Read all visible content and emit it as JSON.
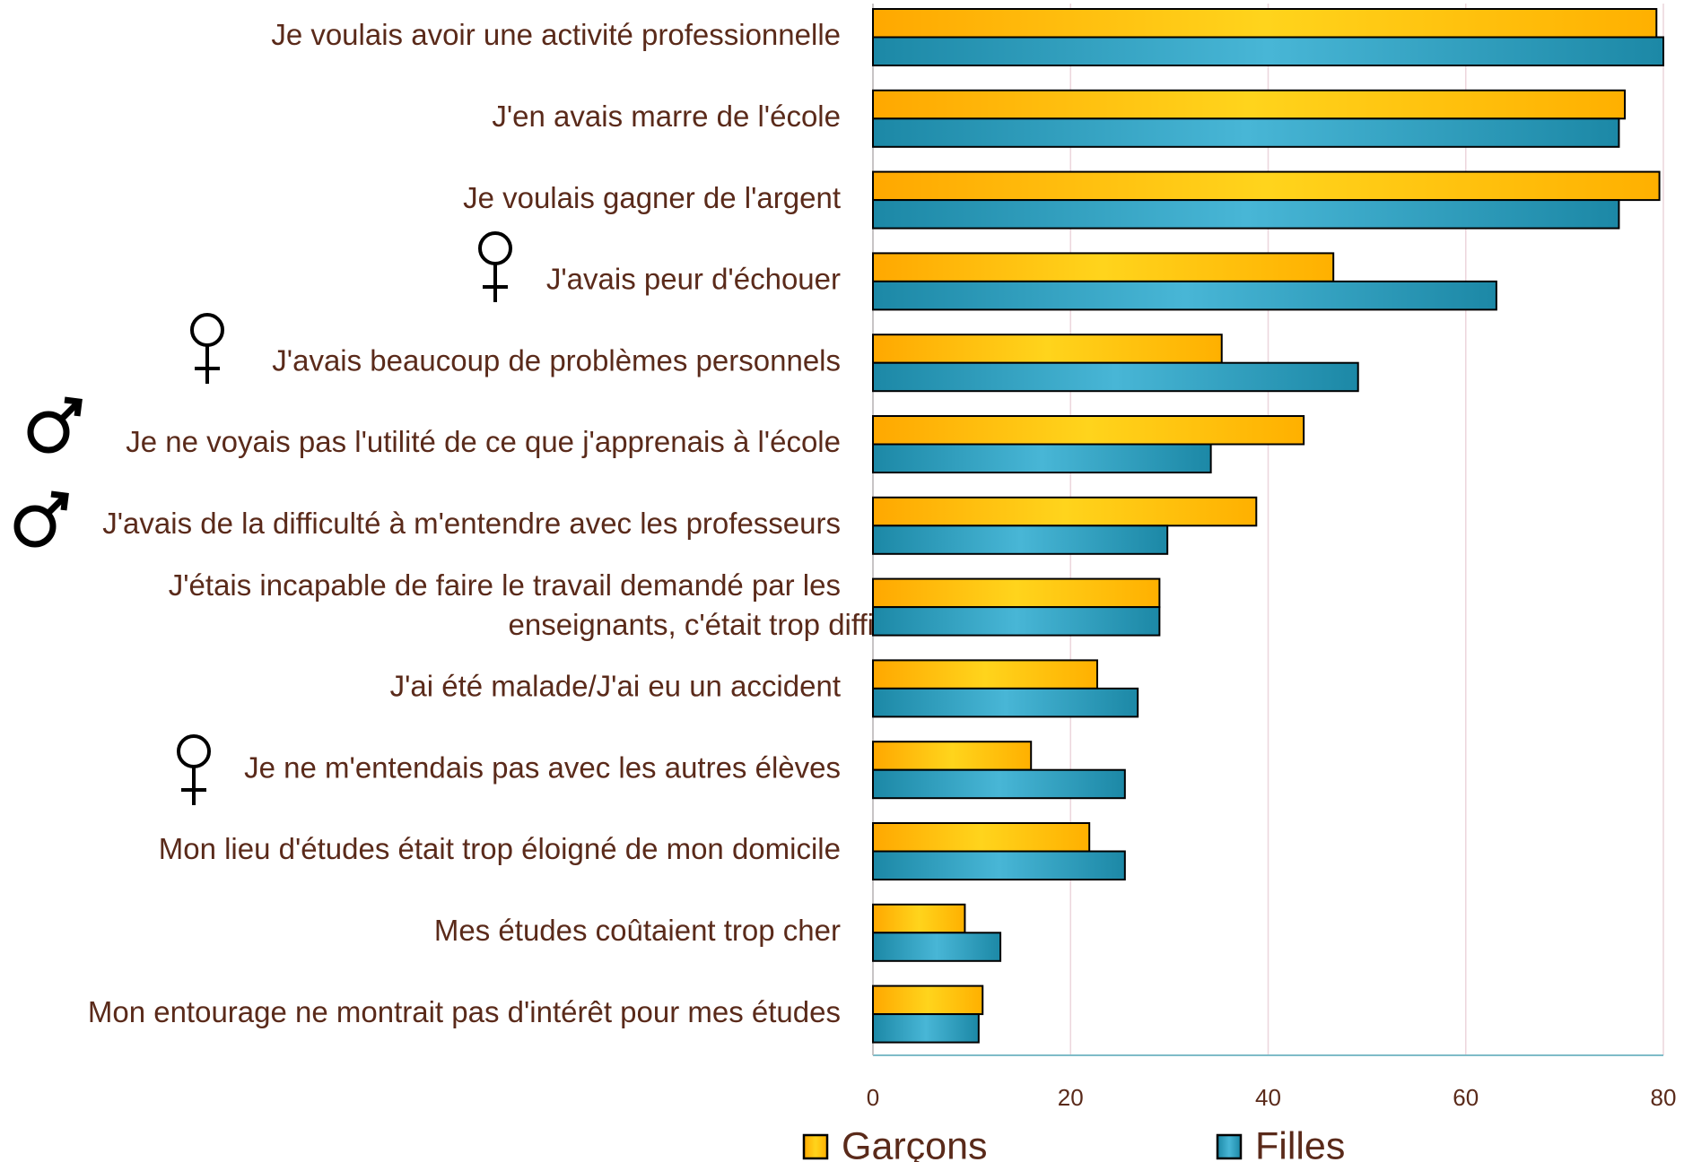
{
  "chart_data": {
    "type": "hbar",
    "categories": [
      "Je voulais avoir une activité professionnelle",
      "J'en avais marre de l'école",
      "Je voulais gagner de l'argent",
      "J'avais peur d'échouer",
      "J'avais beaucoup de problèmes personnels",
      "Je ne voyais pas l'utilité de ce que j'apprenais à l'école",
      "J'avais de la difficulté à m'entendre avec les professeurs",
      "J'étais incapable de faire le travail demandé par les\nenseignants, c'était trop difficile",
      "J'ai été malade/J'ai eu un accident",
      "Je ne m'entendais pas avec les autres élèves",
      "Mon lieu d'études était trop éloigné de mon domicile",
      "Mes études coûtaient trop cher",
      "Mon entourage ne montrait pas d'intérêt pour mes études"
    ],
    "series": [
      {
        "name": "Garçons",
        "color": "#ffbf00",
        "values": [
          79.3,
          76.1,
          79.6,
          46.6,
          35.3,
          43.6,
          38.8,
          29,
          22.7,
          16,
          21.9,
          9.3,
          11.1
        ]
      },
      {
        "name": "Filles",
        "color": "#2b9cc0",
        "values": [
          80,
          75.5,
          75.5,
          63.1,
          49.1,
          34.2,
          29.8,
          29,
          26.8,
          25.5,
          25.5,
          12.9,
          10.7
        ]
      }
    ],
    "xlim": [
      0,
      80
    ],
    "xticks": [
      0,
      20,
      40,
      60,
      80
    ],
    "grid": true,
    "legend": "bottom"
  }
}
